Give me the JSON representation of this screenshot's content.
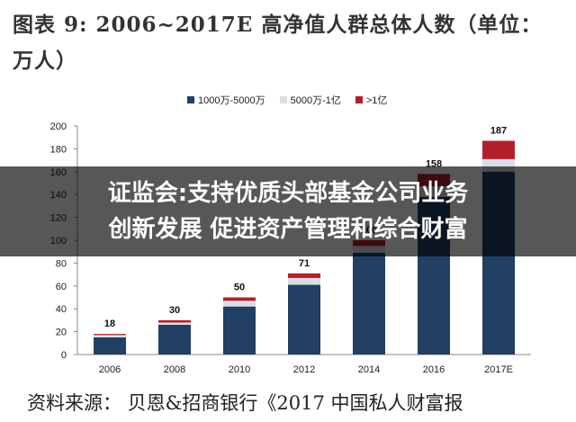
{
  "title": "图表 9:  2006~2017E 高净值人群总体人数（单位：万人）",
  "overlay": {
    "line1": "证监会:支持优质头部基金公司业务",
    "line2": "创新发展 促进资产管理和综合财富"
  },
  "source": "资料来源：  贝恩&招商银行《2017  中国私人财富报",
  "colors": {
    "s1": "#223f64",
    "s2": "#d8dde6",
    "s3": "#b3202c"
  },
  "chart_data": {
    "type": "bar",
    "stacked": true,
    "categories": [
      "2006",
      "2008",
      "2010",
      "2012",
      "2014",
      "2016",
      "2017E"
    ],
    "series": [
      {
        "name": "1000万-5000万",
        "values": [
          15,
          26,
          42,
          61,
          89,
          138,
          160
        ]
      },
      {
        "name": "5000万-1亿",
        "values": [
          2,
          2,
          5,
          6,
          6,
          9,
          11
        ]
      },
      {
        "name": ">1亿",
        "values": [
          1,
          2,
          3,
          4,
          5,
          11,
          16
        ]
      }
    ],
    "totals": [
      18,
      30,
      50,
      71,
      100,
      158,
      187
    ],
    "ylim": [
      0,
      200
    ],
    "yticks": [
      0,
      20,
      40,
      60,
      80,
      100,
      120,
      140,
      160,
      180,
      200
    ],
    "legend_position": "top"
  }
}
